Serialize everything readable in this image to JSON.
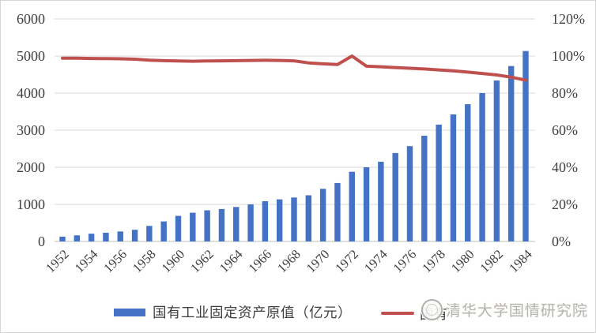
{
  "figure": {
    "background": "#ffffff",
    "border_color": "#d6d6d6"
  },
  "chart_data": {
    "type": "bar",
    "combo": "bar+line",
    "title": "",
    "grid": true,
    "gridline_color": "#d9d9d9",
    "axis_line_color": "#bfbfbf",
    "categories": [
      1952,
      1953,
      1954,
      1955,
      1956,
      1957,
      1958,
      1959,
      1960,
      1961,
      1962,
      1963,
      1964,
      1965,
      1966,
      1967,
      1968,
      1969,
      1970,
      1971,
      1972,
      1973,
      1974,
      1975,
      1976,
      1977,
      1978,
      1979,
      1980,
      1981,
      1982,
      1983,
      1984
    ],
    "series": [
      {
        "name": "国有工业固定资产原值（亿元）",
        "type": "bar",
        "axis": "left",
        "color": "#4472C4",
        "values": [
          130,
          165,
          210,
          235,
          270,
          315,
          420,
          540,
          690,
          775,
          840,
          875,
          930,
          1000,
          1085,
          1135,
          1185,
          1245,
          1420,
          1575,
          1880,
          2000,
          2150,
          2385,
          2570,
          2850,
          3150,
          3425,
          3700,
          4000,
          4340,
          4730,
          5135
        ]
      },
      {
        "name": "国有…（图例文字被水印遮挡）",
        "visible_label_fragment": "国有",
        "type": "line",
        "axis": "right",
        "color": "#C0504D",
        "values_percent": [
          98.8,
          98.8,
          98.7,
          98.6,
          98.5,
          98.3,
          97.8,
          97.5,
          97.3,
          97.2,
          97.3,
          97.4,
          97.5,
          97.6,
          97.7,
          97.6,
          97.4,
          96.3,
          95.8,
          95.4,
          100,
          94.5,
          94.2,
          93.8,
          93.4,
          93,
          92.5,
          92,
          91.3,
          90.6,
          89.8,
          88.6,
          87
        ]
      }
    ],
    "left_axis": {
      "min": 0,
      "max": 6000,
      "step": 1000,
      "ticks": [
        "0",
        "1000",
        "2000",
        "3000",
        "4000",
        "5000",
        "6000"
      ]
    },
    "right_axis": {
      "min": 0,
      "max": 120,
      "step": 20,
      "ticks": [
        "0%",
        "20%",
        "40%",
        "60%",
        "80%",
        "100%",
        "120%"
      ]
    },
    "x_tick_labels": [
      "1952",
      "1954",
      "1956",
      "1958",
      "1960",
      "1962",
      "1964",
      "1966",
      "1968",
      "1970",
      "1972",
      "1974",
      "1976",
      "1978",
      "1980",
      "1982",
      "1984"
    ],
    "legend_position": "bottom",
    "tick_label_color": "#3f3f3f"
  },
  "legend": {
    "bar_label": "国有工业固定资产原值（亿元）",
    "line_label_visible": "国有",
    "bar_color": "#4472C4",
    "line_color": "#C0504D"
  },
  "watermark": {
    "text": "清华大学国情研究院",
    "logo": "round-seal-logo"
  }
}
